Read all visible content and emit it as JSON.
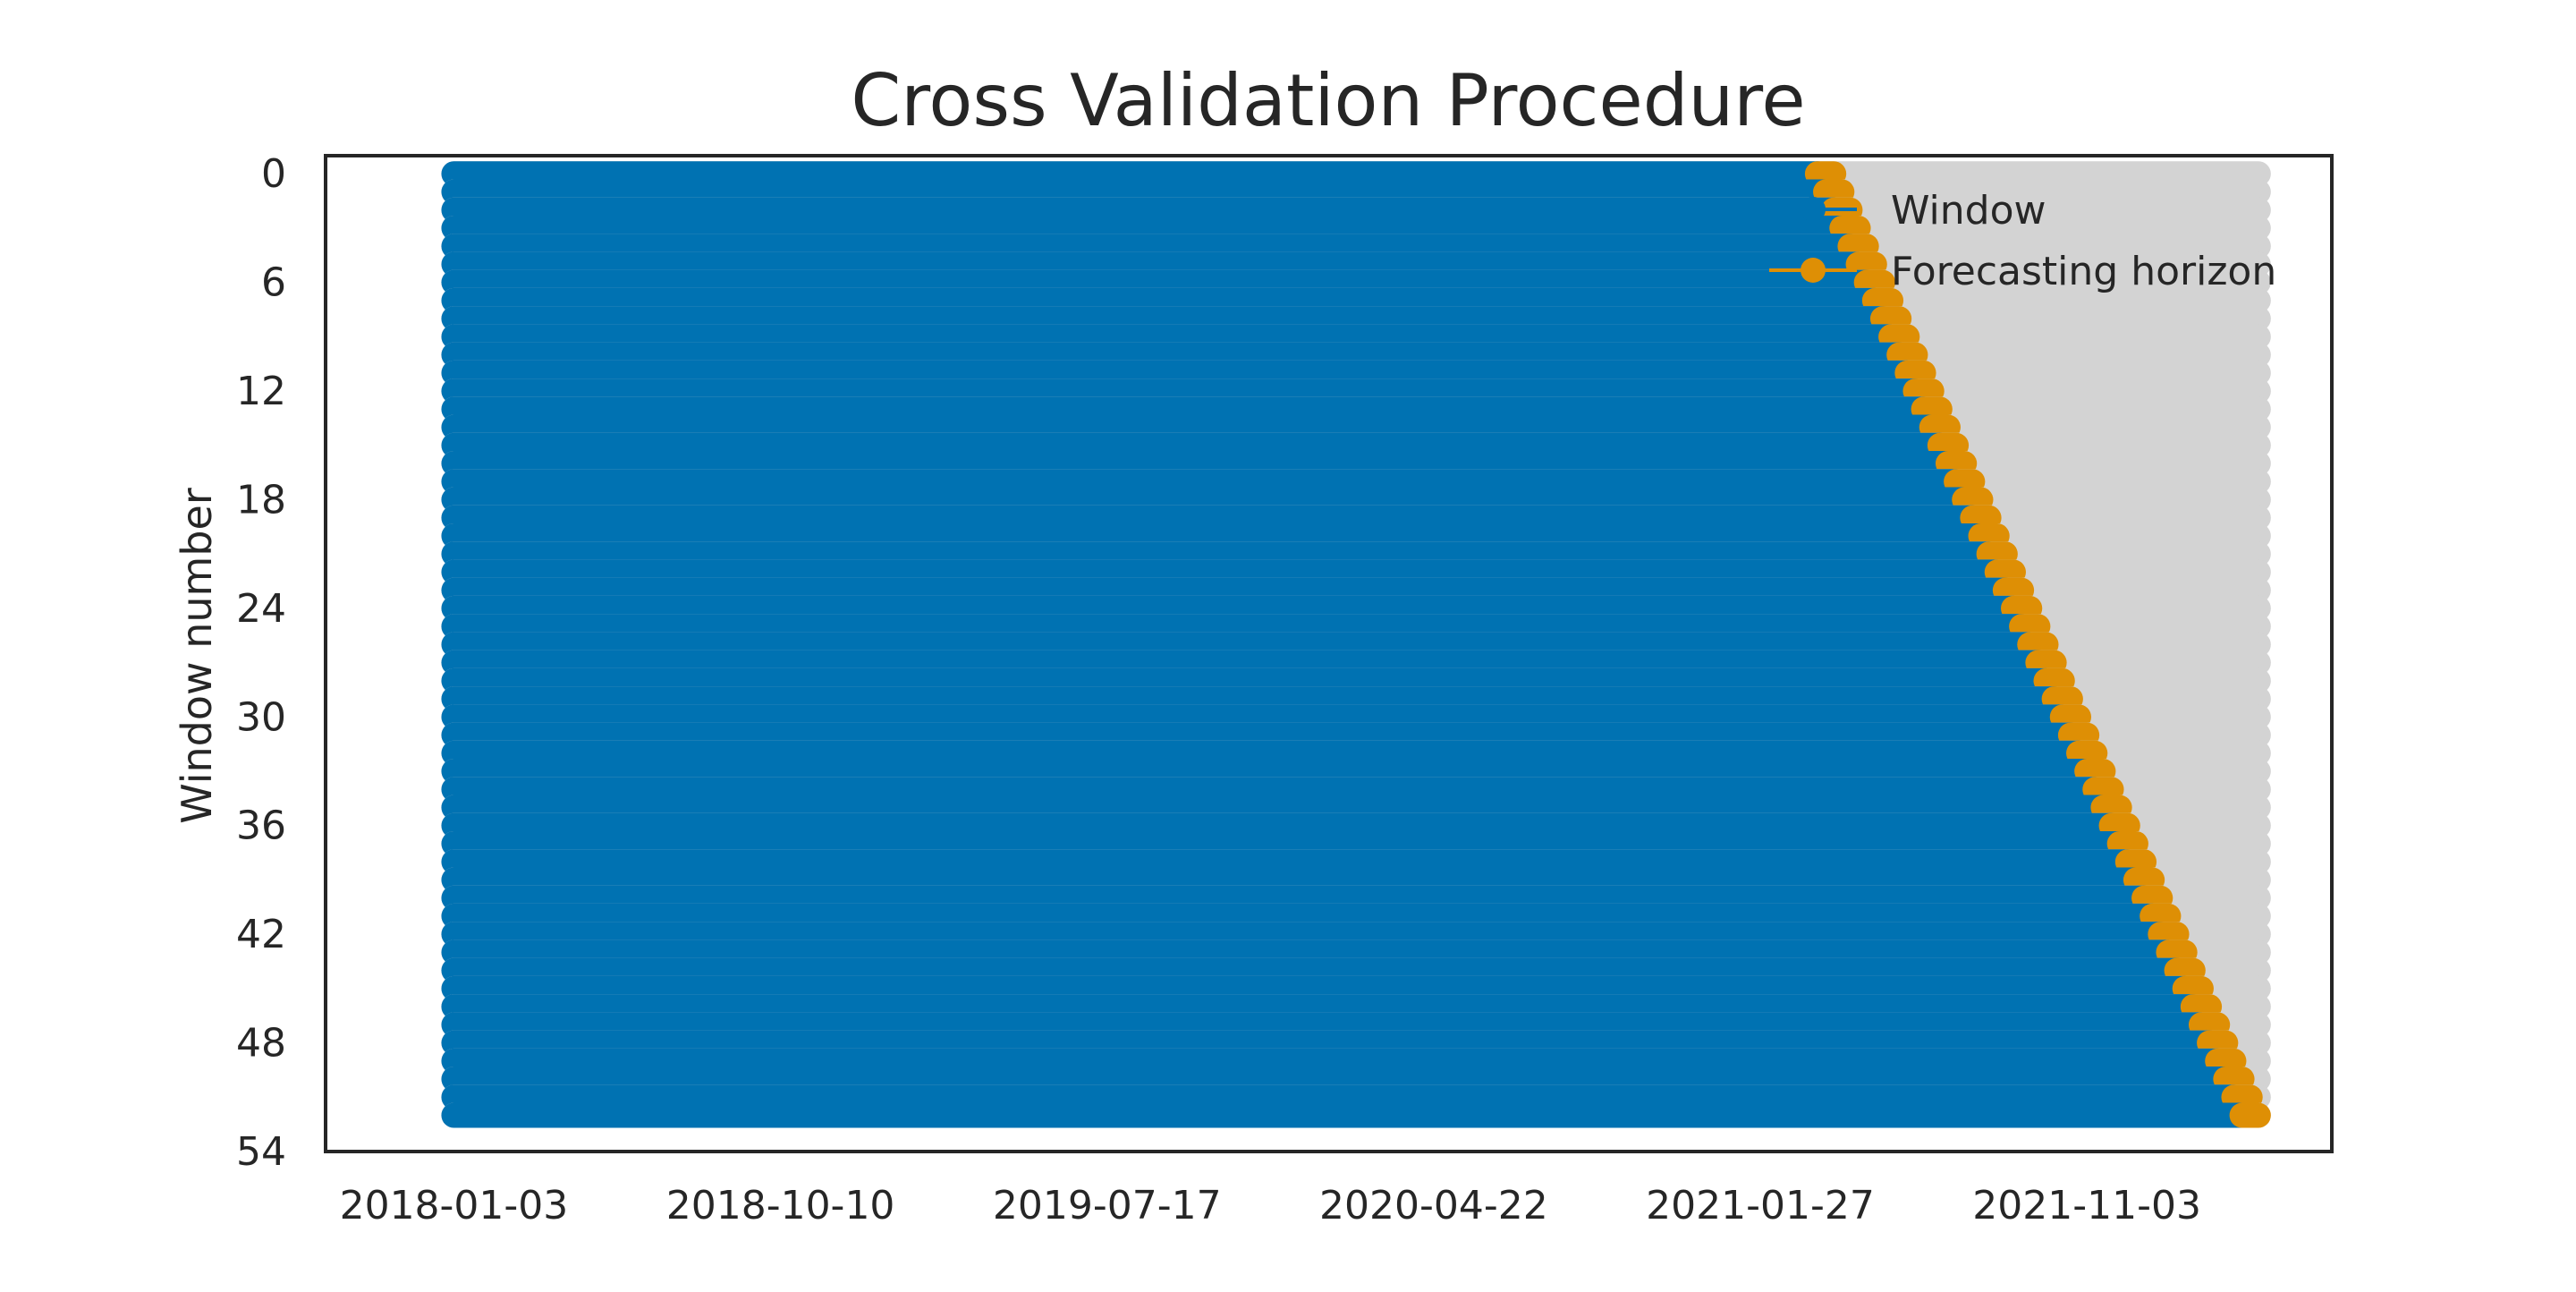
{
  "chart_data": {
    "type": "scatter",
    "title": "Cross Validation Procedure",
    "xlabel": "",
    "ylabel": "Window number",
    "x_axis_type": "date",
    "x_ticks": [
      "2018-01-03",
      "2018-10-10",
      "2019-07-17",
      "2020-04-22",
      "2021-01-27",
      "2021-11-03"
    ],
    "xlim": [
      "2017-09-15",
      "2022-06-01"
    ],
    "y_ticks": [
      0,
      6,
      12,
      18,
      24,
      30,
      36,
      42,
      48,
      54
    ],
    "ylim": [
      54,
      -1
    ],
    "y_inverted": true,
    "grid": false,
    "legend_position": "top-right",
    "colors": {
      "window": "#0072b2",
      "forecasting_horizon": "#de8f05",
      "unused": "#d3d3d3"
    },
    "window_count": 53,
    "series": [
      {
        "name": "Window",
        "marker": "circle",
        "window_start": "2018-01-03",
        "first_window_end": "2021-03-17",
        "window_step": "7 days"
      },
      {
        "name": "Forecasting horizon",
        "marker": "circle",
        "horizon_length": "2 weeks",
        "first_horizon_start": "2021-03-17",
        "last_horizon_end": "2022-03-30"
      }
    ],
    "background_series": {
      "span_start": "2018-01-03",
      "span_end": "2022-03-30"
    }
  }
}
